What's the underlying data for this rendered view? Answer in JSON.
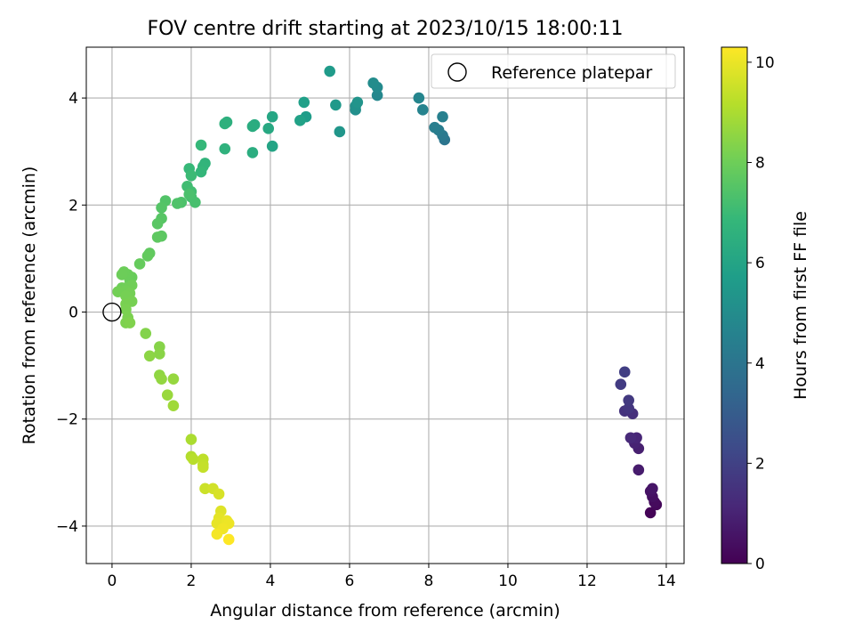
{
  "chart_data": {
    "type": "scatter",
    "title": "FOV centre drift starting at 2023/10/15 18:00:11",
    "xlabel": "Angular distance from reference (arcmin)",
    "ylabel": "Rotation from reference (arcmin)",
    "xlim": [
      -0.65,
      14.45
    ],
    "ylim": [
      -4.7,
      4.95
    ],
    "xticks": [
      0,
      2,
      4,
      6,
      8,
      10,
      12,
      14
    ],
    "yticks": [
      -4,
      -2,
      0,
      2,
      4
    ],
    "grid": true,
    "legend": {
      "label": "Reference platepar",
      "position": "top-right"
    },
    "reference": {
      "x": 0,
      "y": 0
    },
    "colorbar": {
      "label": "Hours from first FF file",
      "colormap": "viridis",
      "range": [
        0,
        10.3
      ],
      "ticks": [
        0,
        2,
        4,
        6,
        8,
        10
      ]
    },
    "points": [
      [
        13.6,
        -3.75,
        0.1
      ],
      [
        13.75,
        -3.6,
        0.2
      ],
      [
        13.7,
        -3.55,
        0.3
      ],
      [
        13.65,
        -3.45,
        0.4
      ],
      [
        13.6,
        -3.35,
        0.5
      ],
      [
        13.65,
        -3.3,
        0.6
      ],
      [
        13.3,
        -2.95,
        0.8
      ],
      [
        13.3,
        -2.55,
        0.9
      ],
      [
        13.2,
        -2.45,
        1.0
      ],
      [
        13.25,
        -2.35,
        1.1
      ],
      [
        13.1,
        -2.35,
        1.2
      ],
      [
        13.15,
        -1.9,
        1.4
      ],
      [
        12.95,
        -1.85,
        1.5
      ],
      [
        13.05,
        -1.8,
        1.6
      ],
      [
        13.05,
        -1.65,
        1.7
      ],
      [
        12.85,
        -1.35,
        1.8
      ],
      [
        12.95,
        -1.12,
        1.9
      ],
      [
        8.4,
        3.22,
        4.0
      ],
      [
        8.35,
        3.3,
        4.2
      ],
      [
        8.25,
        3.4,
        4.3
      ],
      [
        8.15,
        3.45,
        4.4
      ],
      [
        8.35,
        3.65,
        4.5
      ],
      [
        7.85,
        3.78,
        4.6
      ],
      [
        7.75,
        4.0,
        4.7
      ],
      [
        6.7,
        4.05,
        4.8
      ],
      [
        6.7,
        4.2,
        4.9
      ],
      [
        6.6,
        4.28,
        5.0
      ],
      [
        6.15,
        3.78,
        5.1
      ],
      [
        6.15,
        3.85,
        5.2
      ],
      [
        6.2,
        3.92,
        5.3
      ],
      [
        5.75,
        3.37,
        5.4
      ],
      [
        5.65,
        3.87,
        5.5
      ],
      [
        5.5,
        4.5,
        5.6
      ],
      [
        4.9,
        3.65,
        5.7
      ],
      [
        4.85,
        3.92,
        5.8
      ],
      [
        4.75,
        3.58,
        5.9
      ],
      [
        4.05,
        3.1,
        6.0
      ],
      [
        4.05,
        3.65,
        6.1
      ],
      [
        3.95,
        3.43,
        6.2
      ],
      [
        3.6,
        3.5,
        6.3
      ],
      [
        3.55,
        3.47,
        6.35
      ],
      [
        3.55,
        2.98,
        6.4
      ],
      [
        2.9,
        3.55,
        6.5
      ],
      [
        2.85,
        3.52,
        6.55
      ],
      [
        2.85,
        3.05,
        6.6
      ],
      [
        2.35,
        2.78,
        6.7
      ],
      [
        2.3,
        2.72,
        6.75
      ],
      [
        2.25,
        2.62,
        6.8
      ],
      [
        2.25,
        3.12,
        6.85
      ],
      [
        1.95,
        2.68,
        6.9
      ],
      [
        2.0,
        2.55,
        7.0
      ],
      [
        1.9,
        2.35,
        7.1
      ],
      [
        2.0,
        2.25,
        7.15
      ],
      [
        2.0,
        2.15,
        7.2
      ],
      [
        2.1,
        2.05,
        7.25
      ],
      [
        1.95,
        2.2,
        7.3
      ],
      [
        1.75,
        2.05,
        7.35
      ],
      [
        1.65,
        2.03,
        7.4
      ],
      [
        1.35,
        2.08,
        7.45
      ],
      [
        1.25,
        1.95,
        7.5
      ],
      [
        1.25,
        1.75,
        7.55
      ],
      [
        1.15,
        1.65,
        7.6
      ],
      [
        1.25,
        1.42,
        7.65
      ],
      [
        1.15,
        1.4,
        7.7
      ],
      [
        0.95,
        1.1,
        7.75
      ],
      [
        0.9,
        1.05,
        7.8
      ],
      [
        0.7,
        0.9,
        7.85
      ],
      [
        0.5,
        0.65,
        7.9
      ],
      [
        0.45,
        0.6,
        7.92
      ],
      [
        0.4,
        0.7,
        7.94
      ],
      [
        0.3,
        0.75,
        7.96
      ],
      [
        0.25,
        0.7,
        7.98
      ],
      [
        0.25,
        0.45,
        8.0
      ],
      [
        0.35,
        0.45,
        8.02
      ],
      [
        0.5,
        0.5,
        8.04
      ],
      [
        0.35,
        0.4,
        8.06
      ],
      [
        0.15,
        0.38,
        8.08
      ],
      [
        0.45,
        0.35,
        8.1
      ],
      [
        0.35,
        0.3,
        8.12
      ],
      [
        0.5,
        0.2,
        8.15
      ],
      [
        0.35,
        0.15,
        8.18
      ],
      [
        0.35,
        0.05,
        8.2
      ],
      [
        0.4,
        -0.1,
        8.22
      ],
      [
        0.35,
        -0.2,
        8.25
      ],
      [
        0.45,
        -0.2,
        8.3
      ],
      [
        0.85,
        -0.4,
        8.35
      ],
      [
        1.2,
        -0.65,
        8.4
      ],
      [
        1.2,
        -0.78,
        8.45
      ],
      [
        0.95,
        -0.82,
        8.5
      ],
      [
        1.2,
        -1.18,
        8.55
      ],
      [
        1.25,
        -1.25,
        8.6
      ],
      [
        1.55,
        -1.25,
        8.65
      ],
      [
        1.4,
        -1.55,
        8.7
      ],
      [
        1.55,
        -1.75,
        8.8
      ],
      [
        2.0,
        -2.38,
        9.0
      ],
      [
        2.0,
        -2.7,
        9.1
      ],
      [
        2.05,
        -2.75,
        9.2
      ],
      [
        2.3,
        -2.75,
        9.3
      ],
      [
        2.3,
        -2.85,
        9.35
      ],
      [
        2.3,
        -2.9,
        9.4
      ],
      [
        2.35,
        -3.3,
        9.5
      ],
      [
        2.55,
        -3.3,
        9.6
      ],
      [
        2.7,
        -3.4,
        9.7
      ],
      [
        2.75,
        -3.72,
        9.8
      ],
      [
        2.7,
        -3.85,
        9.9
      ],
      [
        2.65,
        -3.95,
        9.95
      ],
      [
        2.9,
        -3.9,
        10.0
      ],
      [
        2.95,
        -3.95,
        10.05
      ],
      [
        2.8,
        -4.05,
        10.1
      ],
      [
        2.65,
        -4.15,
        10.15
      ],
      [
        2.95,
        -4.25,
        10.3
      ]
    ]
  },
  "colors": {
    "axis": "#000000",
    "grid": "#b0b0b0",
    "background": "#ffffff",
    "colormap_stops": [
      "#440154",
      "#482878",
      "#3e4a89",
      "#31688e",
      "#26828e",
      "#1f9e89",
      "#35b779",
      "#6ece58",
      "#b5de2b",
      "#fde725"
    ]
  }
}
